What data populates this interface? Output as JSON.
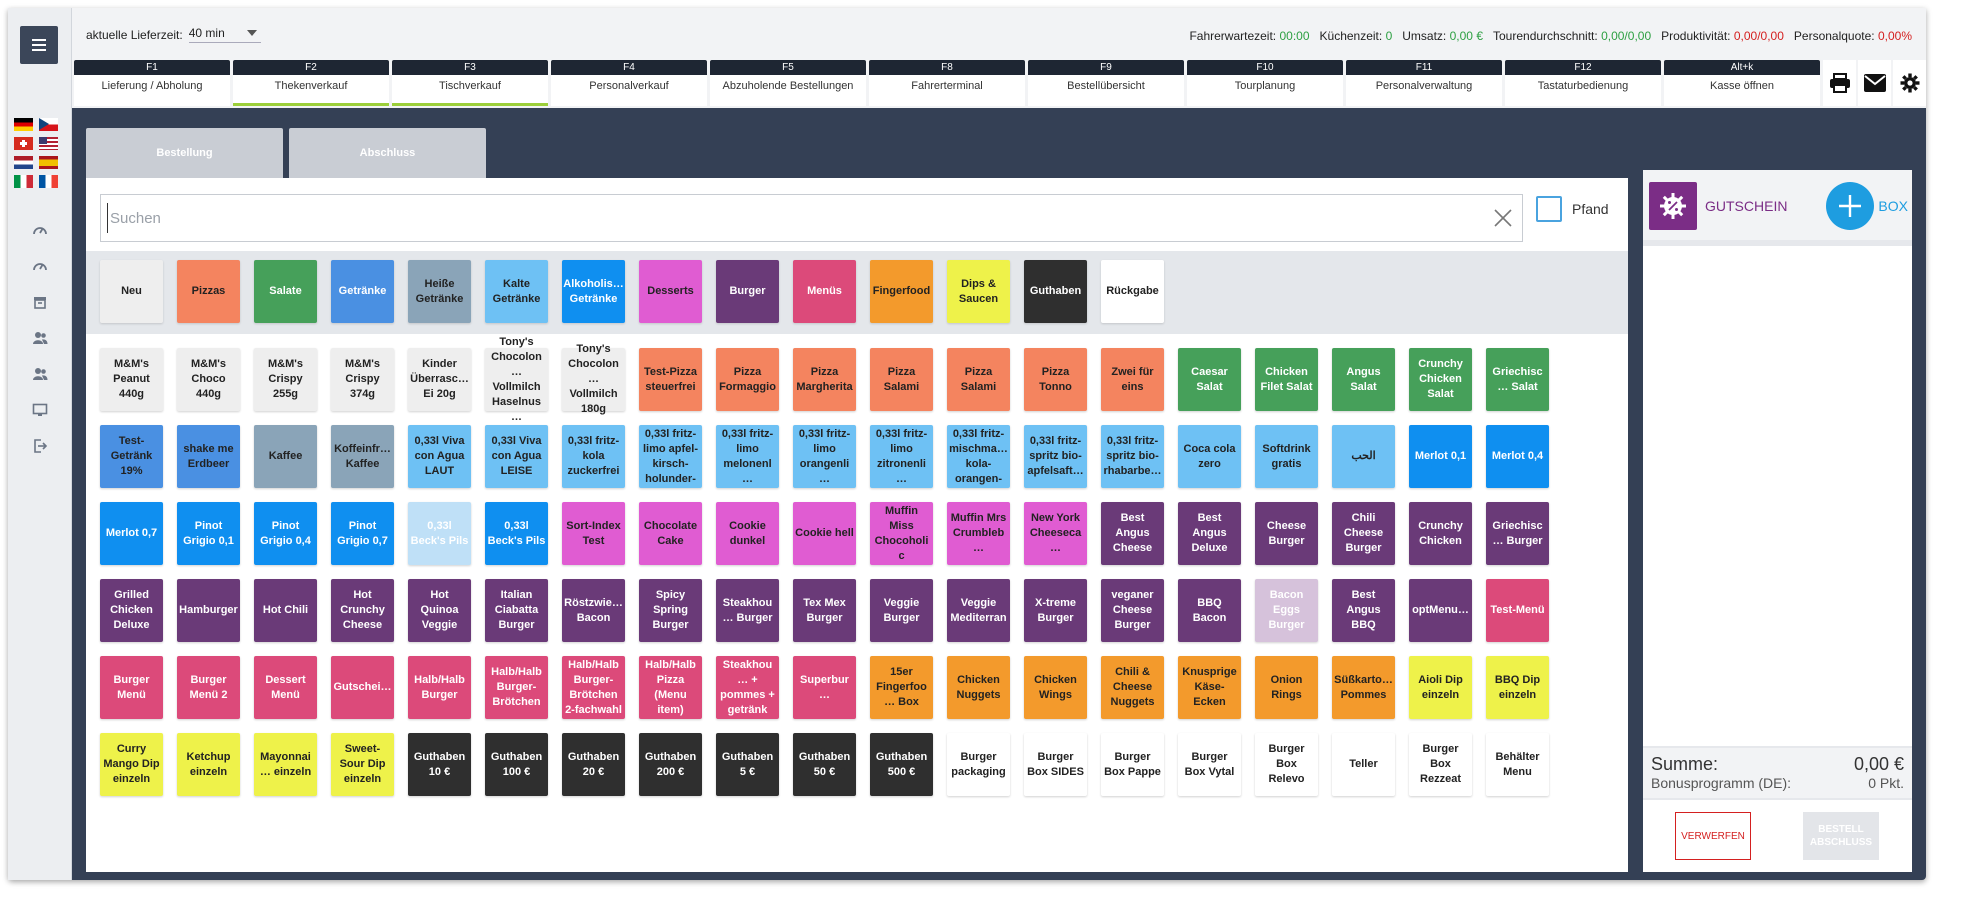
{
  "header": {
    "lieferzeit_label": "aktuelle Lieferzeit:",
    "lieferzeit_value": "40 min",
    "stats": [
      {
        "label": "Fahrerwartezeit:",
        "value": "00:00",
        "color": "green"
      },
      {
        "label": "Küchenzeit:",
        "value": "0",
        "color": "green"
      },
      {
        "label": "Umsatz:",
        "value": "0,00 €",
        "color": "green"
      },
      {
        "label": "Tourendurchschnitt:",
        "value": "0,00/0,00",
        "color": "green"
      },
      {
        "label": "Produktivität:",
        "value": "0,00/0,00",
        "color": "red"
      },
      {
        "label": "Personalquote:",
        "value": "0,00%",
        "color": "red"
      }
    ],
    "fkeys": [
      {
        "key": "F1",
        "label": "Lieferung / Abholung"
      },
      {
        "key": "F2",
        "label": "Thekenverkauf",
        "active": true
      },
      {
        "key": "F3",
        "label": "Tischverkauf",
        "active": true
      },
      {
        "key": "F4",
        "label": "Personalverkauf"
      },
      {
        "key": "F5",
        "label": "Abzuholende Bestellungen"
      },
      {
        "key": "F8",
        "label": "Fahrerterminal"
      },
      {
        "key": "F9",
        "label": "Bestellübersicht"
      },
      {
        "key": "F10",
        "label": "Tourplanung"
      },
      {
        "key": "F11",
        "label": "Personalverwaltung"
      },
      {
        "key": "F12",
        "label": "Tastaturbedienung"
      },
      {
        "key": "Alt+k",
        "label": "Kasse öffnen"
      }
    ],
    "icons": [
      "printer-icon",
      "mail-icon",
      "gear-icon"
    ]
  },
  "tabs": {
    "bestellung": "Bestellung",
    "abschluss": "Abschluss"
  },
  "search": {
    "placeholder": "Suchen",
    "value": ""
  },
  "pfand_label": "Pfand",
  "categories": [
    {
      "label": "Neu",
      "bg": "#eeeeee",
      "fg": "#222222"
    },
    {
      "label": "Pizzas",
      "bg": "#f4845f",
      "fg": "#222222"
    },
    {
      "label": "Salate",
      "bg": "#46a05a",
      "fg": "#ffffff"
    },
    {
      "label": "Getränke",
      "bg": "#4a90e2",
      "fg": "#ffffff"
    },
    {
      "label": "Heiße Getränke",
      "bg": "#8aa4b8",
      "fg": "#222222"
    },
    {
      "label": "Kalte Getränke",
      "bg": "#6ec1f4",
      "fg": "#222222"
    },
    {
      "label": "Alkoholis… Getränke",
      "bg": "#0f8ff0",
      "fg": "#ffffff"
    },
    {
      "label": "Desserts",
      "bg": "#e05cd2",
      "fg": "#222222"
    },
    {
      "label": "Burger",
      "bg": "#6a3a78",
      "fg": "#ffffff"
    },
    {
      "label": "Menüs",
      "bg": "#dc4a7a",
      "fg": "#ffffff"
    },
    {
      "label": "Fingerfood",
      "bg": "#f39a2c",
      "fg": "#222222"
    },
    {
      "label": "Dips & Saucen",
      "bg": "#eef24a",
      "fg": "#222222"
    },
    {
      "label": "Guthaben",
      "bg": "#2f2f2f",
      "fg": "#ffffff"
    },
    {
      "label": "Rückgabe",
      "bg": "#ffffff",
      "fg": "#222222"
    }
  ],
  "products": [
    {
      "label": "M&M's Peanut 440g",
      "bg": "#eeeeee",
      "fg": "#222222"
    },
    {
      "label": "M&M's Choco 440g",
      "bg": "#eeeeee",
      "fg": "#222222"
    },
    {
      "label": "M&M's Crispy 255g",
      "bg": "#eeeeee",
      "fg": "#222222"
    },
    {
      "label": "M&M's Crispy 374g",
      "bg": "#eeeeee",
      "fg": "#222222"
    },
    {
      "label": "Kinder Überrasc… Ei 20g",
      "bg": "#eeeeee",
      "fg": "#222222"
    },
    {
      "label": "Tony's Chocolon… Vollmilch Haselnus…",
      "bg": "#eeeeee",
      "fg": "#222222"
    },
    {
      "label": "Tony's Chocolon… Vollmilch 180g",
      "bg": "#eeeeee",
      "fg": "#222222"
    },
    {
      "label": "Test-Pizza steuerfrei",
      "bg": "#f4845f",
      "fg": "#222222"
    },
    {
      "label": "Pizza Formaggio",
      "bg": "#f4845f",
      "fg": "#222222"
    },
    {
      "label": "Pizza Margherita",
      "bg": "#f4845f",
      "fg": "#222222"
    },
    {
      "label": "Pizza Salami",
      "bg": "#f4845f",
      "fg": "#222222"
    },
    {
      "label": "Pizza Salami",
      "bg": "#f4845f",
      "fg": "#222222"
    },
    {
      "label": "Pizza Tonno",
      "bg": "#f4845f",
      "fg": "#222222"
    },
    {
      "label": "Zwei für eins",
      "bg": "#f4845f",
      "fg": "#222222"
    },
    {
      "label": "Caesar Salat",
      "bg": "#46a05a",
      "fg": "#ffffff"
    },
    {
      "label": "Chicken Filet Salat",
      "bg": "#46a05a",
      "fg": "#ffffff"
    },
    {
      "label": "Angus Salat",
      "bg": "#46a05a",
      "fg": "#ffffff"
    },
    {
      "label": "Crunchy Chicken Salat",
      "bg": "#46a05a",
      "fg": "#ffffff"
    },
    {
      "label": "Griechisc… Salat",
      "bg": "#46a05a",
      "fg": "#ffffff"
    },
    {
      "label": "Test-Getränk 19%",
      "bg": "#4a90e2",
      "fg": "#222222"
    },
    {
      "label": "shake me Erdbeer",
      "bg": "#4a90e2",
      "fg": "#222222"
    },
    {
      "label": "Kaffee",
      "bg": "#8aa4b8",
      "fg": "#222222"
    },
    {
      "label": "Koffeinfr… Kaffee",
      "bg": "#8aa4b8",
      "fg": "#222222"
    },
    {
      "label": "0,33l Viva con Agua LAUT",
      "bg": "#6ec1f4",
      "fg": "#222222"
    },
    {
      "label": "0,33l Viva con Agua LEISE",
      "bg": "#6ec1f4",
      "fg": "#222222"
    },
    {
      "label": "0,33l fritz-kola zuckerfrei",
      "bg": "#6ec1f4",
      "fg": "#222222"
    },
    {
      "label": "0,33l fritz-limo apfel-kirsch-holunder-",
      "bg": "#6ec1f4",
      "fg": "#222222"
    },
    {
      "label": "0,33l fritz-limo melonenl…",
      "bg": "#6ec1f4",
      "fg": "#222222"
    },
    {
      "label": "0,33l fritz-limo orangenli…",
      "bg": "#6ec1f4",
      "fg": "#222222"
    },
    {
      "label": "0,33l fritz-limo zitronenli…",
      "bg": "#6ec1f4",
      "fg": "#222222"
    },
    {
      "label": "0,33l fritz-mischma… kola-orangen-",
      "bg": "#6ec1f4",
      "fg": "#222222"
    },
    {
      "label": "0,33l fritz-spritz bio-apfelsaft…",
      "bg": "#6ec1f4",
      "fg": "#222222"
    },
    {
      "label": "0,33l fritz-spritz bio-rhabarbe…",
      "bg": "#6ec1f4",
      "fg": "#222222"
    },
    {
      "label": "Coca cola zero",
      "bg": "#6ec1f4",
      "fg": "#222222"
    },
    {
      "label": "Softdrink gratis",
      "bg": "#6ec1f4",
      "fg": "#222222"
    },
    {
      "label": "الحب",
      "bg": "#6ec1f4",
      "fg": "#222222"
    },
    {
      "label": "Merlot 0,1",
      "bg": "#0f8ff0",
      "fg": "#ffffff"
    },
    {
      "label": "Merlot 0,4",
      "bg": "#0f8ff0",
      "fg": "#ffffff"
    },
    {
      "label": "Merlot 0,7",
      "bg": "#0f8ff0",
      "fg": "#ffffff"
    },
    {
      "label": "Pinot Grigio 0,1",
      "bg": "#0f8ff0",
      "fg": "#ffffff"
    },
    {
      "label": "Pinot Grigio 0,4",
      "bg": "#0f8ff0",
      "fg": "#ffffff"
    },
    {
      "label": "Pinot Grigio 0,7",
      "bg": "#0f8ff0",
      "fg": "#ffffff"
    },
    {
      "label": "0,33l Beck's Pils",
      "bg": "#bfe0f7",
      "fg": "#ffffff"
    },
    {
      "label": "0,33l Beck's Pils",
      "bg": "#0f8ff0",
      "fg": "#ffffff"
    },
    {
      "label": "Sort-Index Test",
      "bg": "#e05cd2",
      "fg": "#222222"
    },
    {
      "label": "Chocolate Cake",
      "bg": "#e05cd2",
      "fg": "#222222"
    },
    {
      "label": "Cookie dunkel",
      "bg": "#e05cd2",
      "fg": "#222222"
    },
    {
      "label": "Cookie hell",
      "bg": "#e05cd2",
      "fg": "#222222"
    },
    {
      "label": "Muffin Miss Chocoholic",
      "bg": "#e05cd2",
      "fg": "#222222"
    },
    {
      "label": "Muffin Mrs Crumbleb…",
      "bg": "#e05cd2",
      "fg": "#222222"
    },
    {
      "label": "New York Cheeseca…",
      "bg": "#e05cd2",
      "fg": "#222222"
    },
    {
      "label": "Best Angus Cheese",
      "bg": "#6a3a78",
      "fg": "#ffffff"
    },
    {
      "label": "Best Angus Deluxe",
      "bg": "#6a3a78",
      "fg": "#ffffff"
    },
    {
      "label": "Cheese Burger",
      "bg": "#6a3a78",
      "fg": "#ffffff"
    },
    {
      "label": "Chili Cheese Burger",
      "bg": "#6a3a78",
      "fg": "#ffffff"
    },
    {
      "label": "Crunchy Chicken",
      "bg": "#6a3a78",
      "fg": "#ffffff"
    },
    {
      "label": "Griechisc… Burger",
      "bg": "#6a3a78",
      "fg": "#ffffff"
    },
    {
      "label": "Grilled Chicken Deluxe",
      "bg": "#6a3a78",
      "fg": "#ffffff"
    },
    {
      "label": "Hamburger",
      "bg": "#6a3a78",
      "fg": "#ffffff"
    },
    {
      "label": "Hot Chili",
      "bg": "#6a3a78",
      "fg": "#ffffff"
    },
    {
      "label": "Hot Crunchy Cheese",
      "bg": "#6a3a78",
      "fg": "#ffffff"
    },
    {
      "label": "Hot Quinoa Veggie",
      "bg": "#6a3a78",
      "fg": "#ffffff"
    },
    {
      "label": "Italian Ciabatta Burger",
      "bg": "#6a3a78",
      "fg": "#ffffff"
    },
    {
      "label": "Röstzwie… Bacon",
      "bg": "#6a3a78",
      "fg": "#ffffff"
    },
    {
      "label": "Spicy Spring Burger",
      "bg": "#6a3a78",
      "fg": "#ffffff"
    },
    {
      "label": "Steakhou… Burger",
      "bg": "#6a3a78",
      "fg": "#ffffff"
    },
    {
      "label": "Tex Mex Burger",
      "bg": "#6a3a78",
      "fg": "#ffffff"
    },
    {
      "label": "Veggie Burger",
      "bg": "#6a3a78",
      "fg": "#ffffff"
    },
    {
      "label": "Veggie Mediterran",
      "bg": "#6a3a78",
      "fg": "#ffffff"
    },
    {
      "label": "X-treme Burger",
      "bg": "#6a3a78",
      "fg": "#ffffff"
    },
    {
      "label": "veganer Cheese Burger",
      "bg": "#6a3a78",
      "fg": "#ffffff"
    },
    {
      "label": "BBQ Bacon",
      "bg": "#6a3a78",
      "fg": "#ffffff"
    },
    {
      "label": "Bacon Eggs Burger",
      "bg": "#d6c2db",
      "fg": "#ffffff"
    },
    {
      "label": "Best Angus BBQ",
      "bg": "#6a3a78",
      "fg": "#ffffff"
    },
    {
      "label": "optMenu…",
      "bg": "#6a3a78",
      "fg": "#ffffff"
    },
    {
      "label": "Test-Menü",
      "bg": "#dc4a7a",
      "fg": "#ffffff"
    },
    {
      "label": "Burger Menü",
      "bg": "#dc4a7a",
      "fg": "#ffffff"
    },
    {
      "label": "Burger Menü 2",
      "bg": "#dc4a7a",
      "fg": "#ffffff"
    },
    {
      "label": "Dessert Menü",
      "bg": "#dc4a7a",
      "fg": "#ffffff"
    },
    {
      "label": "Gutschei…",
      "bg": "#dc4a7a",
      "fg": "#ffffff"
    },
    {
      "label": "Halb/Halb Burger",
      "bg": "#dc4a7a",
      "fg": "#ffffff"
    },
    {
      "label": "Halb/Halb Burger-Brötchen",
      "bg": "#dc4a7a",
      "fg": "#ffffff"
    },
    {
      "label": "Halb/Halb Burger-Brötchen 2-fachwahl",
      "bg": "#dc4a7a",
      "fg": "#ffffff"
    },
    {
      "label": "Halb/Halb Pizza (Menu item)",
      "bg": "#dc4a7a",
      "fg": "#ffffff"
    },
    {
      "label": "Steakhou… + pommes + getränk",
      "bg": "#dc4a7a",
      "fg": "#ffffff"
    },
    {
      "label": "Superbur…",
      "bg": "#dc4a7a",
      "fg": "#ffffff"
    },
    {
      "label": "15er Fingerfoo… Box",
      "bg": "#f39a2c",
      "fg": "#222222"
    },
    {
      "label": "Chicken Nuggets",
      "bg": "#f39a2c",
      "fg": "#222222"
    },
    {
      "label": "Chicken Wings",
      "bg": "#f39a2c",
      "fg": "#222222"
    },
    {
      "label": "Chili & Cheese Nuggets",
      "bg": "#f39a2c",
      "fg": "#222222"
    },
    {
      "label": "Knusprige Käse-Ecken",
      "bg": "#f39a2c",
      "fg": "#222222"
    },
    {
      "label": "Onion Rings",
      "bg": "#f39a2c",
      "fg": "#222222"
    },
    {
      "label": "Süßkarto… Pommes",
      "bg": "#f39a2c",
      "fg": "#222222"
    },
    {
      "label": "Aioli Dip einzeln",
      "bg": "#eef24a",
      "fg": "#222222"
    },
    {
      "label": "BBQ Dip einzeln",
      "bg": "#eef24a",
      "fg": "#222222"
    },
    {
      "label": "Curry Mango Dip einzeln",
      "bg": "#eef24a",
      "fg": "#222222"
    },
    {
      "label": "Ketchup einzeln",
      "bg": "#eef24a",
      "fg": "#222222"
    },
    {
      "label": "Mayonnai… einzeln",
      "bg": "#eef24a",
      "fg": "#222222"
    },
    {
      "label": "Sweet-Sour Dip einzeln",
      "bg": "#eef24a",
      "fg": "#222222"
    },
    {
      "label": "Guthaben 10 €",
      "bg": "#2f2f2f",
      "fg": "#ffffff"
    },
    {
      "label": "Guthaben 100 €",
      "bg": "#2f2f2f",
      "fg": "#ffffff"
    },
    {
      "label": "Guthaben 20 €",
      "bg": "#2f2f2f",
      "fg": "#ffffff"
    },
    {
      "label": "Guthaben 200 €",
      "bg": "#2f2f2f",
      "fg": "#ffffff"
    },
    {
      "label": "Guthaben 5 €",
      "bg": "#2f2f2f",
      "fg": "#ffffff"
    },
    {
      "label": "Guthaben 50 €",
      "bg": "#2f2f2f",
      "fg": "#ffffff"
    },
    {
      "label": "Guthaben 500 €",
      "bg": "#2f2f2f",
      "fg": "#ffffff"
    },
    {
      "label": "Burger packaging",
      "bg": "#ffffff",
      "fg": "#222222"
    },
    {
      "label": "Burger Box SIDES",
      "bg": "#ffffff",
      "fg": "#222222"
    },
    {
      "label": "Burger Box Pappe",
      "bg": "#ffffff",
      "fg": "#222222"
    },
    {
      "label": "Burger Box Vytal",
      "bg": "#ffffff",
      "fg": "#222222"
    },
    {
      "label": "Burger Box Relevo",
      "bg": "#ffffff",
      "fg": "#222222"
    },
    {
      "label": "Teller",
      "bg": "#ffffff",
      "fg": "#222222"
    },
    {
      "label": "Burger Box Rezzeat",
      "bg": "#ffffff",
      "fg": "#222222"
    },
    {
      "label": "Behälter Menu",
      "bg": "#ffffff",
      "fg": "#222222"
    }
  ],
  "right_panel": {
    "gutschein_label": "GUTSCHEIN",
    "box_label": "BOX",
    "summe_label": "Summe:",
    "summe_value": "0,00 €",
    "bonus_label": "Bonusprogramm (DE):",
    "bonus_value": "0 Pkt.",
    "verwerfen_label": "VERWERFEN",
    "bestell_label": "BESTELL ABSCHLUSS"
  }
}
